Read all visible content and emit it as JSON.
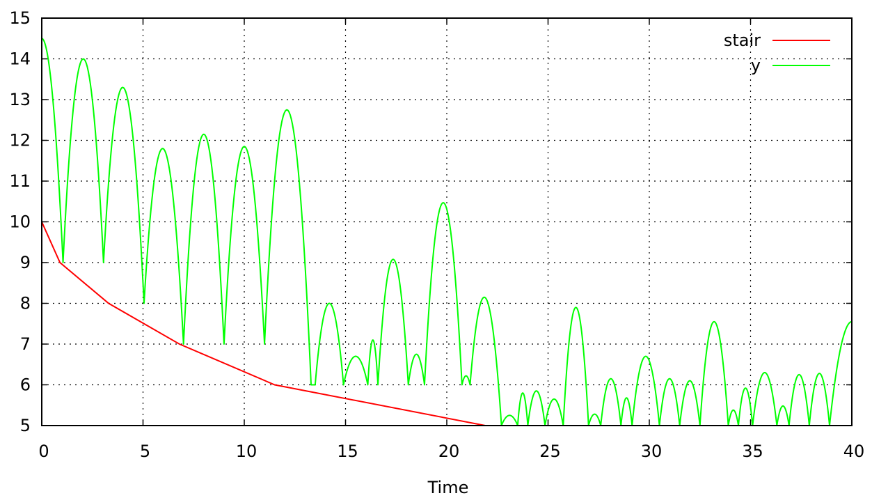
{
  "chart_data": {
    "type": "line",
    "title": "",
    "xlabel": "Time",
    "ylabel": "",
    "xlim": [
      0,
      40
    ],
    "ylim": [
      5,
      15
    ],
    "x_ticks": [
      "0",
      "5",
      "10",
      "15",
      "20",
      "25",
      "30",
      "35",
      "40"
    ],
    "y_ticks": [
      "5",
      "6",
      "7",
      "8",
      "9",
      "10",
      "11",
      "12",
      "13",
      "14",
      "15"
    ],
    "grid": true,
    "legend_position": "top-right",
    "series": [
      {
        "name": "stair",
        "color": "#ff0000",
        "x": [
          0,
          0.9,
          3.3,
          6.8,
          11.5,
          21.9
        ],
        "y": [
          10,
          9,
          8,
          7,
          6,
          5
        ]
      },
      {
        "name": "y",
        "color": "#00ff00",
        "bounces": [
          {
            "x0": 0,
            "x1": 1.05,
            "peak_x": 0,
            "peak": 14.5,
            "ya": 14.5,
            "yb": 9
          },
          {
            "x0": 1.05,
            "x1": 3.05,
            "peak": 14.0,
            "ya": 9,
            "yb": 9
          },
          {
            "x0": 3.05,
            "x1": 5.05,
            "peak": 13.3,
            "ya": 9,
            "yb": 8
          },
          {
            "x0": 5.05,
            "x1": 7.0,
            "peak": 11.8,
            "ya": 8,
            "yb": 7
          },
          {
            "x0": 7.0,
            "x1": 9.0,
            "peak": 12.15,
            "ya": 7,
            "yb": 7
          },
          {
            "x0": 9.0,
            "x1": 11.0,
            "peak": 11.85,
            "ya": 7,
            "yb": 7
          },
          {
            "x0": 11.0,
            "x1": 13.3,
            "peak": 12.75,
            "ya": 7,
            "yb": 6
          },
          {
            "x0": 13.5,
            "x1": 14.9,
            "peak": 8.0,
            "ya": 6,
            "yb": 6
          },
          {
            "x0": 14.9,
            "x1": 16.1,
            "peak": 6.7,
            "ya": 6,
            "yb": 6
          },
          {
            "x0": 16.1,
            "x1": 16.6,
            "peak": 7.1,
            "ya": 6,
            "yb": 6
          },
          {
            "x0": 16.6,
            "x1": 18.1,
            "peak": 9.08,
            "ya": 6,
            "yb": 6
          },
          {
            "x0": 18.1,
            "x1": 18.9,
            "peak": 6.75,
            "ya": 6,
            "yb": 6
          },
          {
            "x0": 18.9,
            "x1": 20.75,
            "peak": 10.47,
            "ya": 6,
            "yb": 6
          },
          {
            "x0": 20.75,
            "x1": 21.15,
            "peak": 6.22,
            "ya": 6,
            "yb": 6
          },
          {
            "x0": 21.15,
            "x1": 22.7,
            "peak": 8.15,
            "ya": 6,
            "yb": 5
          },
          {
            "x0": 22.7,
            "x1": 23.5,
            "peak": 5.25,
            "ya": 5,
            "yb": 5
          },
          {
            "x0": 23.5,
            "x1": 24.0,
            "peak": 5.8,
            "ya": 5,
            "yb": 5
          },
          {
            "x0": 24.0,
            "x1": 24.85,
            "peak": 5.85,
            "ya": 5,
            "yb": 5
          },
          {
            "x0": 24.85,
            "x1": 25.75,
            "peak": 5.65,
            "ya": 5,
            "yb": 5
          },
          {
            "x0": 25.75,
            "x1": 27.0,
            "peak": 7.9,
            "ya": 5,
            "yb": 5
          },
          {
            "x0": 27.0,
            "x1": 27.6,
            "peak": 5.28,
            "ya": 5,
            "yb": 5
          },
          {
            "x0": 27.6,
            "x1": 28.6,
            "peak": 6.15,
            "ya": 5,
            "yb": 5
          },
          {
            "x0": 28.6,
            "x1": 29.15,
            "peak": 5.68,
            "ya": 5,
            "yb": 5
          },
          {
            "x0": 29.15,
            "x1": 30.5,
            "peak": 6.7,
            "ya": 5,
            "yb": 5
          },
          {
            "x0": 30.5,
            "x1": 31.5,
            "peak": 6.15,
            "ya": 5,
            "yb": 5
          },
          {
            "x0": 31.5,
            "x1": 32.5,
            "peak": 6.1,
            "ya": 5,
            "yb": 5
          },
          {
            "x0": 32.5,
            "x1": 33.9,
            "peak": 7.55,
            "ya": 5,
            "yb": 5
          },
          {
            "x0": 33.9,
            "x1": 34.4,
            "peak": 5.38,
            "ya": 5,
            "yb": 5
          },
          {
            "x0": 34.4,
            "x1": 35.1,
            "peak": 5.92,
            "ya": 5,
            "yb": 5
          },
          {
            "x0": 35.1,
            "x1": 36.3,
            "peak": 6.3,
            "ya": 5,
            "yb": 5
          },
          {
            "x0": 36.3,
            "x1": 36.9,
            "peak": 5.48,
            "ya": 5,
            "yb": 5
          },
          {
            "x0": 36.9,
            "x1": 37.9,
            "peak": 6.25,
            "ya": 5,
            "yb": 5
          },
          {
            "x0": 37.9,
            "x1": 38.9,
            "peak": 6.28,
            "ya": 5,
            "yb": 5
          },
          {
            "x0": 38.9,
            "x1": 40.0,
            "peak_x": 40.0,
            "peak": 7.55,
            "ya": 5,
            "yb": 7.55
          }
        ]
      }
    ]
  }
}
